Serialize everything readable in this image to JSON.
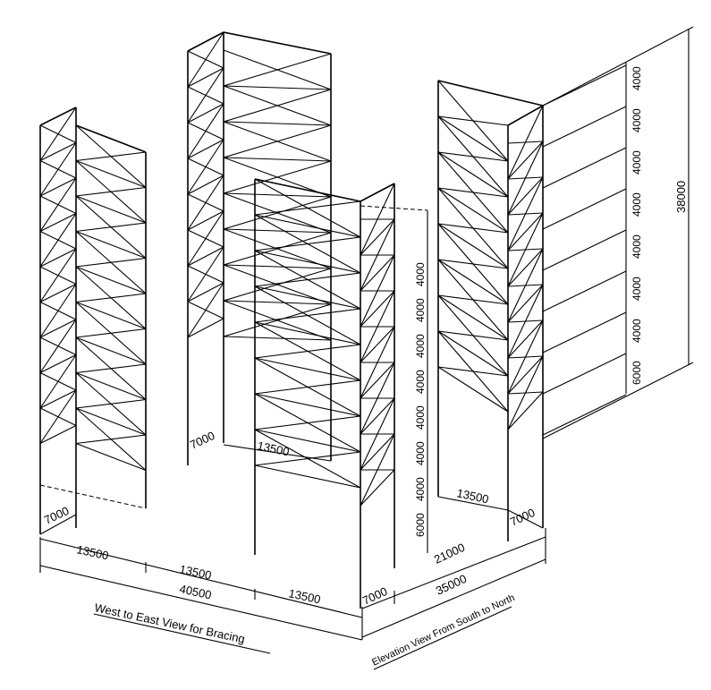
{
  "dimensions": {
    "t7000_west": "7000",
    "t13500_west_a": "13500",
    "t13500_mid_a": "13500",
    "t40500": "40500",
    "t13500_right_a": "13500",
    "t7000_center": "7000",
    "t13500_center": "13500",
    "t7000_south": "7000",
    "t21000": "21000",
    "t35000": "35000",
    "t13500_east": "13500",
    "t7000_east": "7000",
    "t38000": "38000",
    "center_levels": [
      "6000",
      "4000",
      "4000",
      "4000",
      "4000",
      "4000",
      "4000",
      "4000"
    ],
    "east_levels": [
      "6000",
      "4000",
      "4000",
      "4000",
      "4000",
      "4000",
      "4000",
      "4000"
    ]
  },
  "captions": {
    "west_east": "West to East View for Bracing",
    "south_north": "Elevation View From South to North"
  }
}
